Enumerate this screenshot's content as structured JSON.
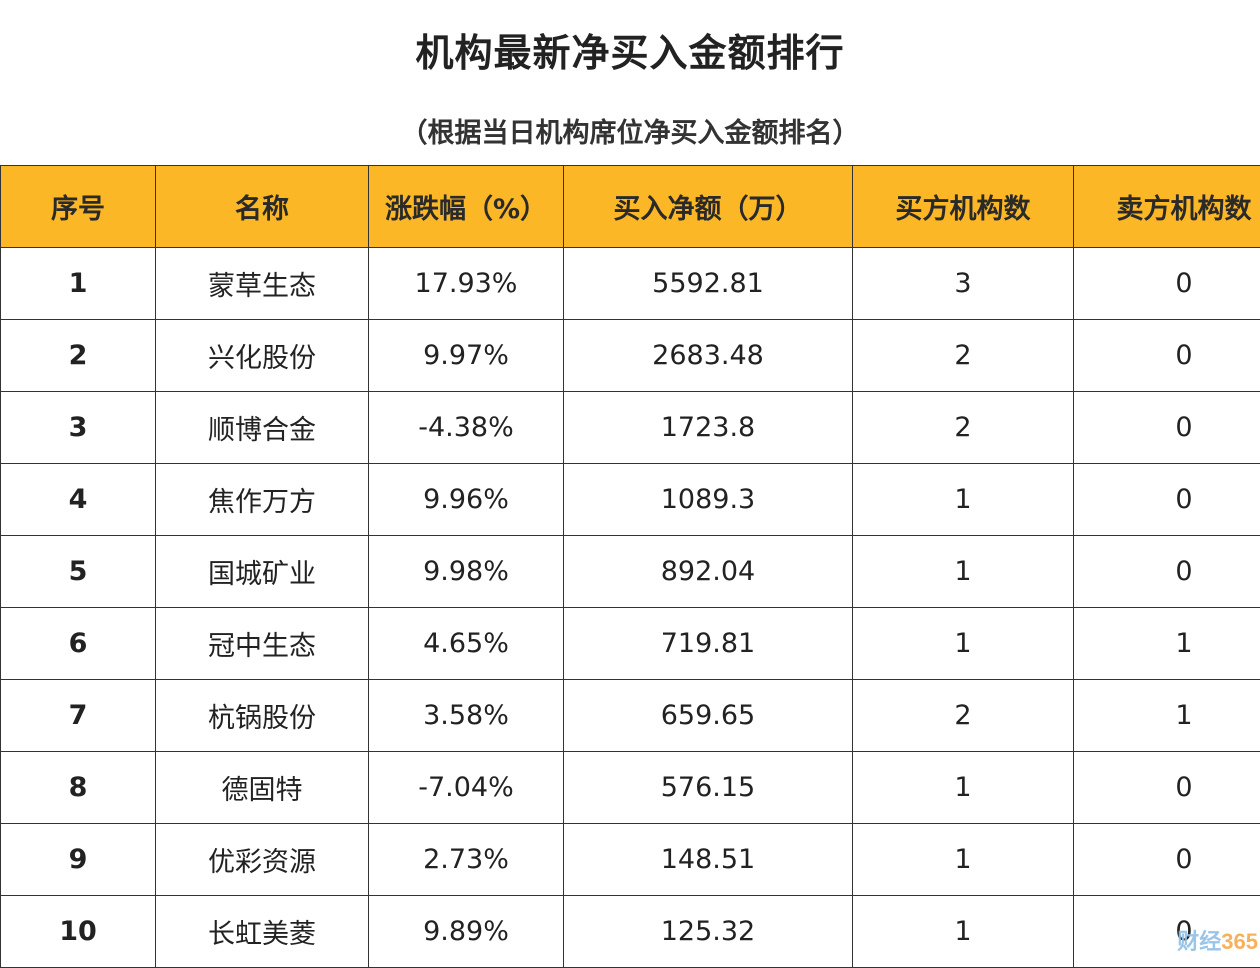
{
  "header": {
    "title": "机构最新净买入金额排行",
    "subtitle": "（根据当日机构席位净买入金额排名）"
  },
  "table": {
    "columns": [
      "序号",
      "名称",
      "涨跌幅（%）",
      "买入净额（万）",
      "买方机构数",
      "卖方机构数"
    ],
    "rows": [
      [
        "1",
        "蒙草生态",
        "17.93%",
        "5592.81",
        "3",
        "0"
      ],
      [
        "2",
        "兴化股份",
        "9.97%",
        "2683.48",
        "2",
        "0"
      ],
      [
        "3",
        "顺博合金",
        "-4.38%",
        "1723.8",
        "2",
        "0"
      ],
      [
        "4",
        "焦作万方",
        "9.96%",
        "1089.3",
        "1",
        "0"
      ],
      [
        "5",
        "国城矿业",
        "9.98%",
        "892.04",
        "1",
        "0"
      ],
      [
        "6",
        "冠中生态",
        "4.65%",
        "719.81",
        "1",
        "1"
      ],
      [
        "7",
        "杭锅股份",
        "3.58%",
        "659.65",
        "2",
        "1"
      ],
      [
        "8",
        "德固特",
        "-7.04%",
        "576.15",
        "1",
        "0"
      ],
      [
        "9",
        "优彩资源",
        "2.73%",
        "148.51",
        "1",
        "0"
      ],
      [
        "10",
        "长虹美菱",
        "9.89%",
        "125.32",
        "1",
        "0"
      ]
    ]
  },
  "watermark": {
    "cn": "财经",
    "num": "365"
  }
}
